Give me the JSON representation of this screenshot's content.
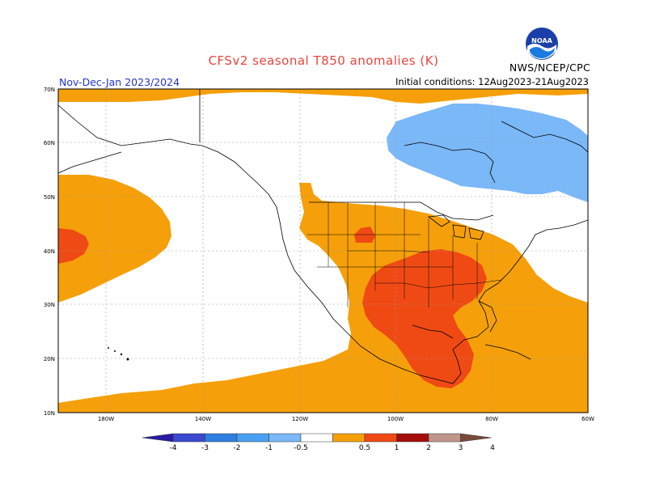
{
  "header": {
    "title": "CFSv2 seasonal T850 anomalies (K)",
    "period": "Nov-Dec-Jan 2023/2024",
    "initial_conditions": "Initial conditions: 12Aug2023-21Aug2023",
    "agency": "NWS/NCEP/CPC",
    "logo_text": "NOAA"
  },
  "map": {
    "lat_labels": [
      "70N",
      "60N",
      "50N",
      "40N",
      "30N",
      "20N",
      "10N"
    ],
    "lon_labels": [
      "180W",
      "140W",
      "120W",
      "100W",
      "80W",
      "60W"
    ]
  },
  "colorbar": {
    "labels": [
      "-4",
      "-3",
      "-2",
      "-1",
      "-0.5",
      "0.5",
      "1",
      "2",
      "3",
      "4"
    ],
    "colors": [
      "#2a1aa0",
      "#3b48d0",
      "#2f7fe0",
      "#4aa0f0",
      "#7ab8f8",
      "#ffffff",
      "#f5a00a",
      "#f04a14",
      "#a50c0c",
      "#c0968a",
      "#7a4a3a"
    ]
  }
}
